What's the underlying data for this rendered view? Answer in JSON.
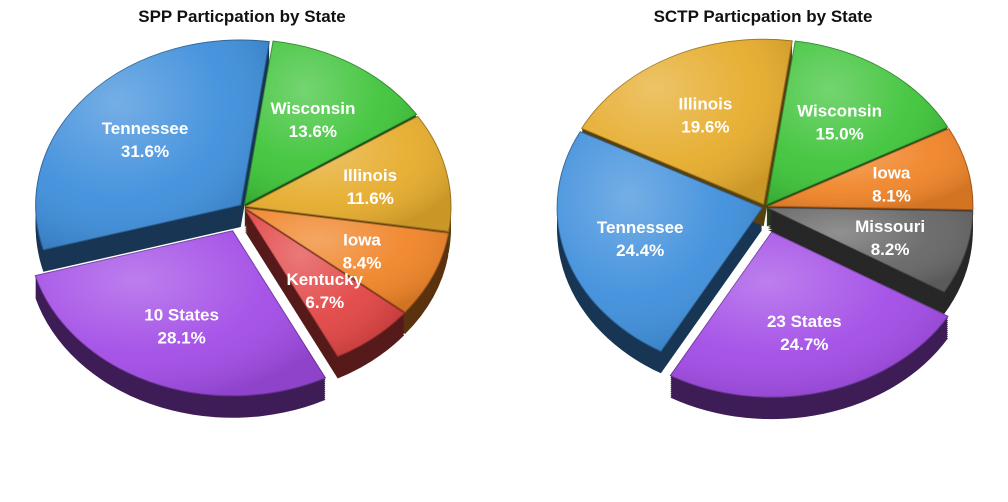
{
  "chart_data": [
    {
      "type": "pie",
      "title": "SPP Particpation by State",
      "slices": [
        {
          "label": "Wisconsin",
          "value": 13.6,
          "value_label": "13.6%",
          "color": "#3fc43a"
        },
        {
          "label": "Illinois",
          "value": 11.6,
          "value_label": "11.6%",
          "color": "#e6ac2c"
        },
        {
          "label": "Iowa",
          "value": 8.4,
          "value_label": "8.4%",
          "color": "#f08428"
        },
        {
          "label": "Kentucky",
          "value": 6.7,
          "value_label": "6.7%",
          "color": "#e24545"
        },
        {
          "label": "10 States",
          "value": 28.1,
          "value_label": "28.1%",
          "color": "#a24ce6",
          "exploded": true
        },
        {
          "label": "Tennessee",
          "value": 31.6,
          "value_label": "31.6%",
          "color": "#3f8fdc"
        }
      ]
    },
    {
      "type": "pie",
      "title": "SCTP Particpation by State",
      "slices": [
        {
          "label": "Wisconsin",
          "value": 15.0,
          "value_label": "15.0%",
          "color": "#3fc43a"
        },
        {
          "label": "Iowa",
          "value": 8.1,
          "value_label": "8.1%",
          "color": "#f08428"
        },
        {
          "label": "Missouri",
          "value": 8.2,
          "value_label": "8.2%",
          "color": "#666666"
        },
        {
          "label": "23 States",
          "value": 24.7,
          "value_label": "24.7%",
          "color": "#a24ce6",
          "exploded": true
        },
        {
          "label": "Tennessee",
          "value": 24.4,
          "value_label": "24.4%",
          "color": "#3f8fdc"
        },
        {
          "label": "Illinois",
          "value": 19.6,
          "value_label": "19.6%",
          "color": "#e6ac2c"
        }
      ]
    }
  ]
}
